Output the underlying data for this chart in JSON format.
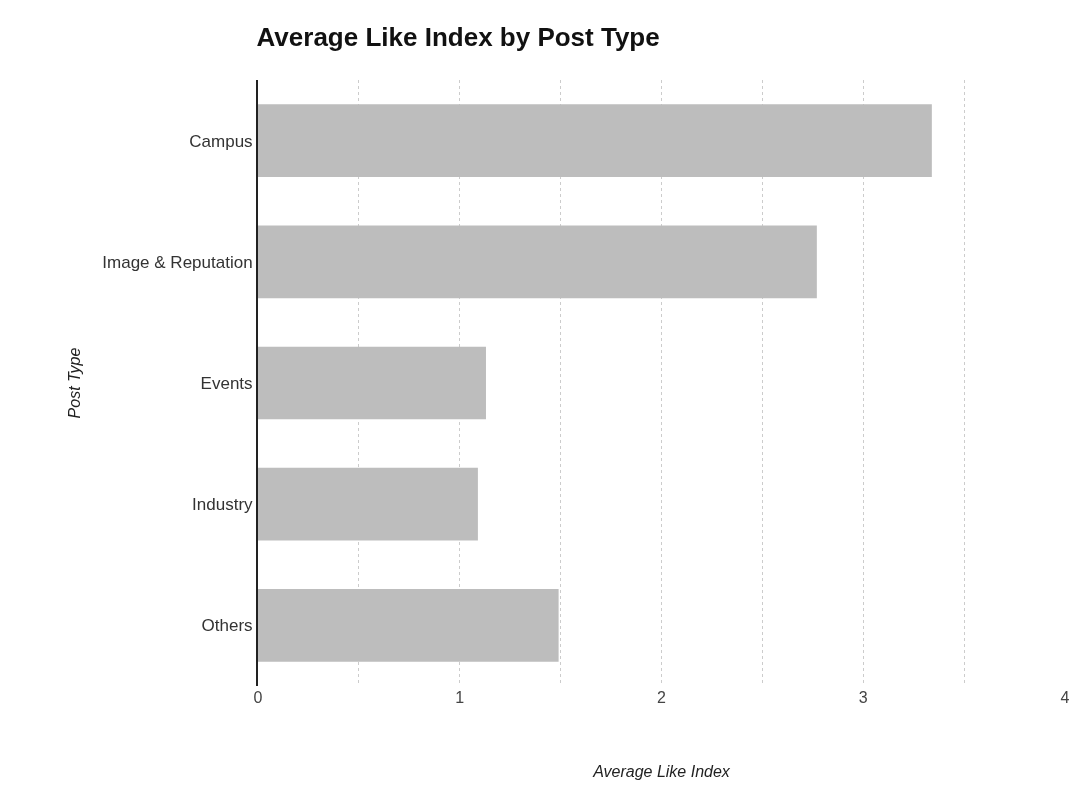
{
  "chart_data": {
    "type": "bar",
    "orientation": "horizontal",
    "title": "Average Like Index by Post Type",
    "xlabel": "Average Like Index",
    "ylabel": "Post Type",
    "categories": [
      "Campus",
      "Image & Reputation",
      "Events",
      "Industry",
      "Others"
    ],
    "values": [
      3.34,
      2.77,
      1.13,
      1.09,
      1.49
    ],
    "color": "#bdbdbd",
    "xlim": [
      0,
      4
    ],
    "xticks": [
      0,
      {
        "value": 0.5,
        "label": null
      },
      1,
      {
        "value": 1.5,
        "label": null
      },
      2,
      {
        "value": 2.5,
        "label": null
      },
      3,
      {
        "value": 3.5,
        "label": null
      },
      4
    ],
    "grid": "x"
  }
}
